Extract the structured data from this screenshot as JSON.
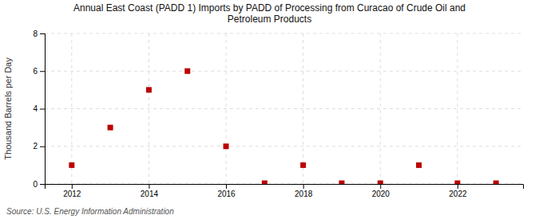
{
  "chart_data": {
    "type": "scatter",
    "title": "Annual East Coast (PADD 1) Imports by PADD of Processing from Curacao of Crude Oil and\nPetroleum Products",
    "ylabel": "Thousand Barrels per Day",
    "source": "Source: U.S. Energy Information Administration",
    "x": [
      2012,
      2013,
      2014,
      2015,
      2016,
      2017,
      2018,
      2019,
      2020,
      2021,
      2022,
      2023
    ],
    "values": [
      1.0,
      3.0,
      5.0,
      6.0,
      2.0,
      0.04,
      1.0,
      0.04,
      0.04,
      1.0,
      0.04,
      0.04
    ],
    "color": "#bb0000",
    "marker": "square",
    "xlim": [
      2011.3,
      2023.7
    ],
    "ylim": [
      0,
      8
    ],
    "xticks": [
      2012,
      2014,
      2016,
      2018,
      2020,
      2022
    ],
    "yticks": [
      0,
      2,
      4,
      6,
      8
    ],
    "grid": true
  }
}
